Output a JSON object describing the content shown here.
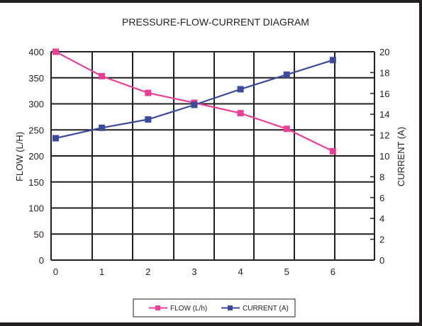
{
  "chart_data": {
    "type": "line",
    "title": "PRESSURE-FLOW-CURRENT DIAGRAM",
    "categories": [
      "0",
      "1",
      "2",
      "3",
      "4",
      "5",
      "6"
    ],
    "x": [
      0,
      1,
      2,
      3,
      4,
      5,
      6
    ],
    "xlim": [
      -0.1,
      6.9
    ],
    "ylabel_left": "FLOW (L/H)",
    "ylabel_right": "CURRENT (A)",
    "ylim_left": [
      0,
      400
    ],
    "ylim_right": [
      0,
      20
    ],
    "yticks_left": [
      "0",
      "50",
      "100",
      "150",
      "200",
      "250",
      "300",
      "350",
      "400"
    ],
    "yticks_right": [
      "0",
      "2",
      "4",
      "6",
      "8",
      "10",
      "12",
      "14",
      "16",
      "18",
      "20"
    ],
    "grid": true,
    "legend_position": "bottom",
    "series": [
      {
        "name": "FLOW (L/h)",
        "axis": "left",
        "color": "#ec3e97",
        "values": [
          400,
          353,
          321,
          302,
          282,
          252,
          209
        ]
      },
      {
        "name": "CURRENT (A)",
        "axis": "right",
        "color": "#3c4a99",
        "values": [
          11.7,
          12.7,
          13.5,
          14.9,
          16.4,
          17.8,
          19.2
        ]
      }
    ]
  }
}
